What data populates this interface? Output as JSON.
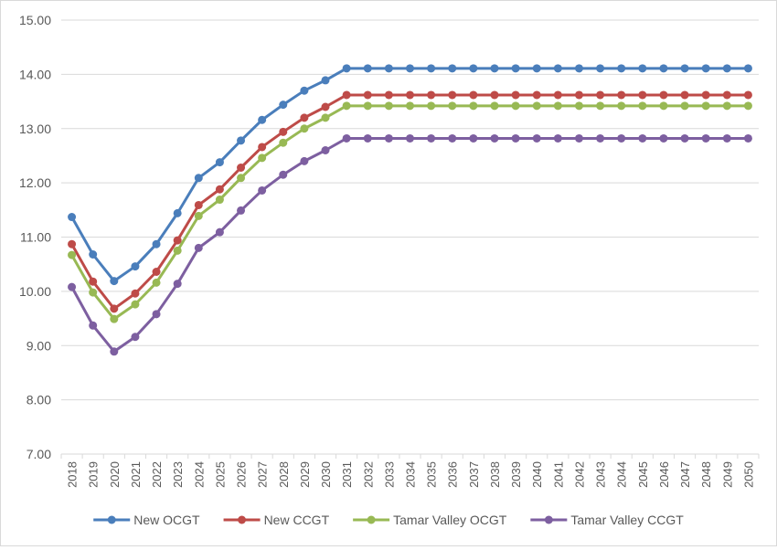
{
  "chart_data": {
    "type": "line",
    "title": "",
    "xlabel": "",
    "ylabel": "",
    "ylim": [
      7.0,
      15.0
    ],
    "yticks": [
      "7.00",
      "8.00",
      "9.00",
      "10.00",
      "11.00",
      "12.00",
      "13.00",
      "14.00",
      "15.00"
    ],
    "grid": "horizontal",
    "legend_position": "bottom",
    "categories": [
      "2018",
      "2019",
      "2020",
      "2021",
      "2022",
      "2023",
      "2024",
      "2025",
      "2026",
      "2027",
      "2028",
      "2029",
      "2030",
      "2031",
      "2032",
      "2033",
      "2034",
      "2035",
      "2036",
      "2037",
      "2038",
      "2039",
      "2040",
      "2041",
      "2042",
      "2043",
      "2044",
      "2045",
      "2046",
      "2047",
      "2048",
      "2049",
      "2050"
    ],
    "series": [
      {
        "name": "New OCGT",
        "color": "#4a7ebb",
        "values": [
          11.37,
          10.68,
          10.19,
          10.46,
          10.87,
          11.44,
          12.09,
          12.38,
          12.78,
          13.16,
          13.44,
          13.7,
          13.89,
          14.11,
          14.11,
          14.11,
          14.11,
          14.11,
          14.11,
          14.11,
          14.11,
          14.11,
          14.11,
          14.11,
          14.11,
          14.11,
          14.11,
          14.11,
          14.11,
          14.11,
          14.11,
          14.11,
          14.11
        ]
      },
      {
        "name": "New CCGT",
        "color": "#be4b48",
        "values": [
          10.87,
          10.18,
          9.68,
          9.96,
          10.36,
          10.94,
          11.59,
          11.88,
          12.28,
          12.66,
          12.94,
          13.2,
          13.4,
          13.62,
          13.62,
          13.62,
          13.62,
          13.62,
          13.62,
          13.62,
          13.62,
          13.62,
          13.62,
          13.62,
          13.62,
          13.62,
          13.62,
          13.62,
          13.62,
          13.62,
          13.62,
          13.62,
          13.62
        ]
      },
      {
        "name": "Tamar Valley OCGT",
        "color": "#98b954",
        "values": [
          10.67,
          9.98,
          9.49,
          9.76,
          10.16,
          10.75,
          11.39,
          11.69,
          12.09,
          12.46,
          12.74,
          13.0,
          13.2,
          13.42,
          13.42,
          13.42,
          13.42,
          13.42,
          13.42,
          13.42,
          13.42,
          13.42,
          13.42,
          13.42,
          13.42,
          13.42,
          13.42,
          13.42,
          13.42,
          13.42,
          13.42,
          13.42,
          13.42
        ]
      },
      {
        "name": "Tamar Valley CCGT",
        "color": "#7d5fa0",
        "values": [
          10.08,
          9.37,
          8.89,
          9.16,
          9.58,
          10.14,
          10.8,
          11.09,
          11.49,
          11.86,
          12.15,
          12.4,
          12.6,
          12.82,
          12.82,
          12.82,
          12.82,
          12.82,
          12.82,
          12.82,
          12.82,
          12.82,
          12.82,
          12.82,
          12.82,
          12.82,
          12.82,
          12.82,
          12.82,
          12.82,
          12.82,
          12.82,
          12.82
        ]
      }
    ]
  }
}
